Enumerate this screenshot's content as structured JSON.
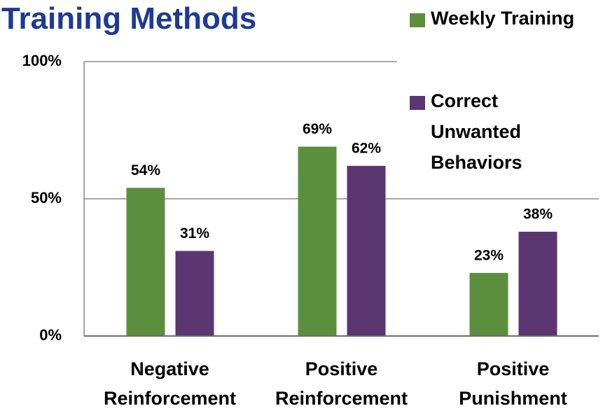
{
  "chart_data": {
    "type": "bar",
    "title": "Training Methods",
    "categories": [
      "Negative Reinforcement",
      "Positive Reinforcement",
      "Positive Punishment"
    ],
    "series": [
      {
        "name": "Weekly Training",
        "color": "#5b8f3d",
        "values": [
          54,
          69,
          23
        ],
        "value_labels": [
          "54%",
          "69%",
          "23%"
        ]
      },
      {
        "name": "Correct Unwanted Behaviors",
        "color": "#5c3670",
        "values": [
          31,
          62,
          38
        ],
        "value_labels": [
          "31%",
          "62%",
          "38%"
        ]
      }
    ],
    "ylim": [
      0,
      100
    ],
    "yticks": [
      {
        "value": 0,
        "label": "0%"
      },
      {
        "value": 50,
        "label": "50%"
      },
      {
        "value": 100,
        "label": "100%"
      }
    ],
    "grid": true
  }
}
